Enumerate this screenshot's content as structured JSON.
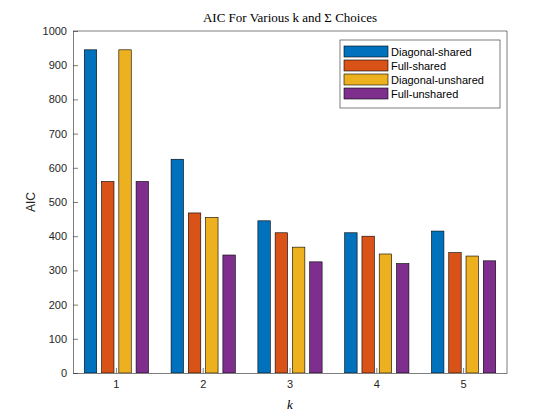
{
  "chart_data": {
    "type": "bar",
    "title": "AIC For Various k and Σ Choices",
    "x_label": "k",
    "y_label": "AIC",
    "categories": [
      "1",
      "2",
      "3",
      "4",
      "5"
    ],
    "series": [
      {
        "name": "Diagonal-shared",
        "color": "#0072bd",
        "values": [
          945,
          625,
          445,
          410,
          415
        ]
      },
      {
        "name": "Full-shared",
        "color": "#d95319",
        "values": [
          560,
          468,
          410,
          400,
          352
        ]
      },
      {
        "name": "Diagonal-unshared",
        "color": "#edb120",
        "values": [
          945,
          455,
          368,
          348,
          342
        ]
      },
      {
        "name": "Full-unshared",
        "color": "#7e2f8e",
        "values": [
          560,
          345,
          325,
          320,
          328
        ]
      }
    ],
    "ylim": [
      0,
      1000
    ],
    "yticks": [
      0,
      100,
      200,
      300,
      400,
      500,
      600,
      700,
      800,
      900,
      1000
    ],
    "grid": false,
    "legend": "northeast"
  }
}
